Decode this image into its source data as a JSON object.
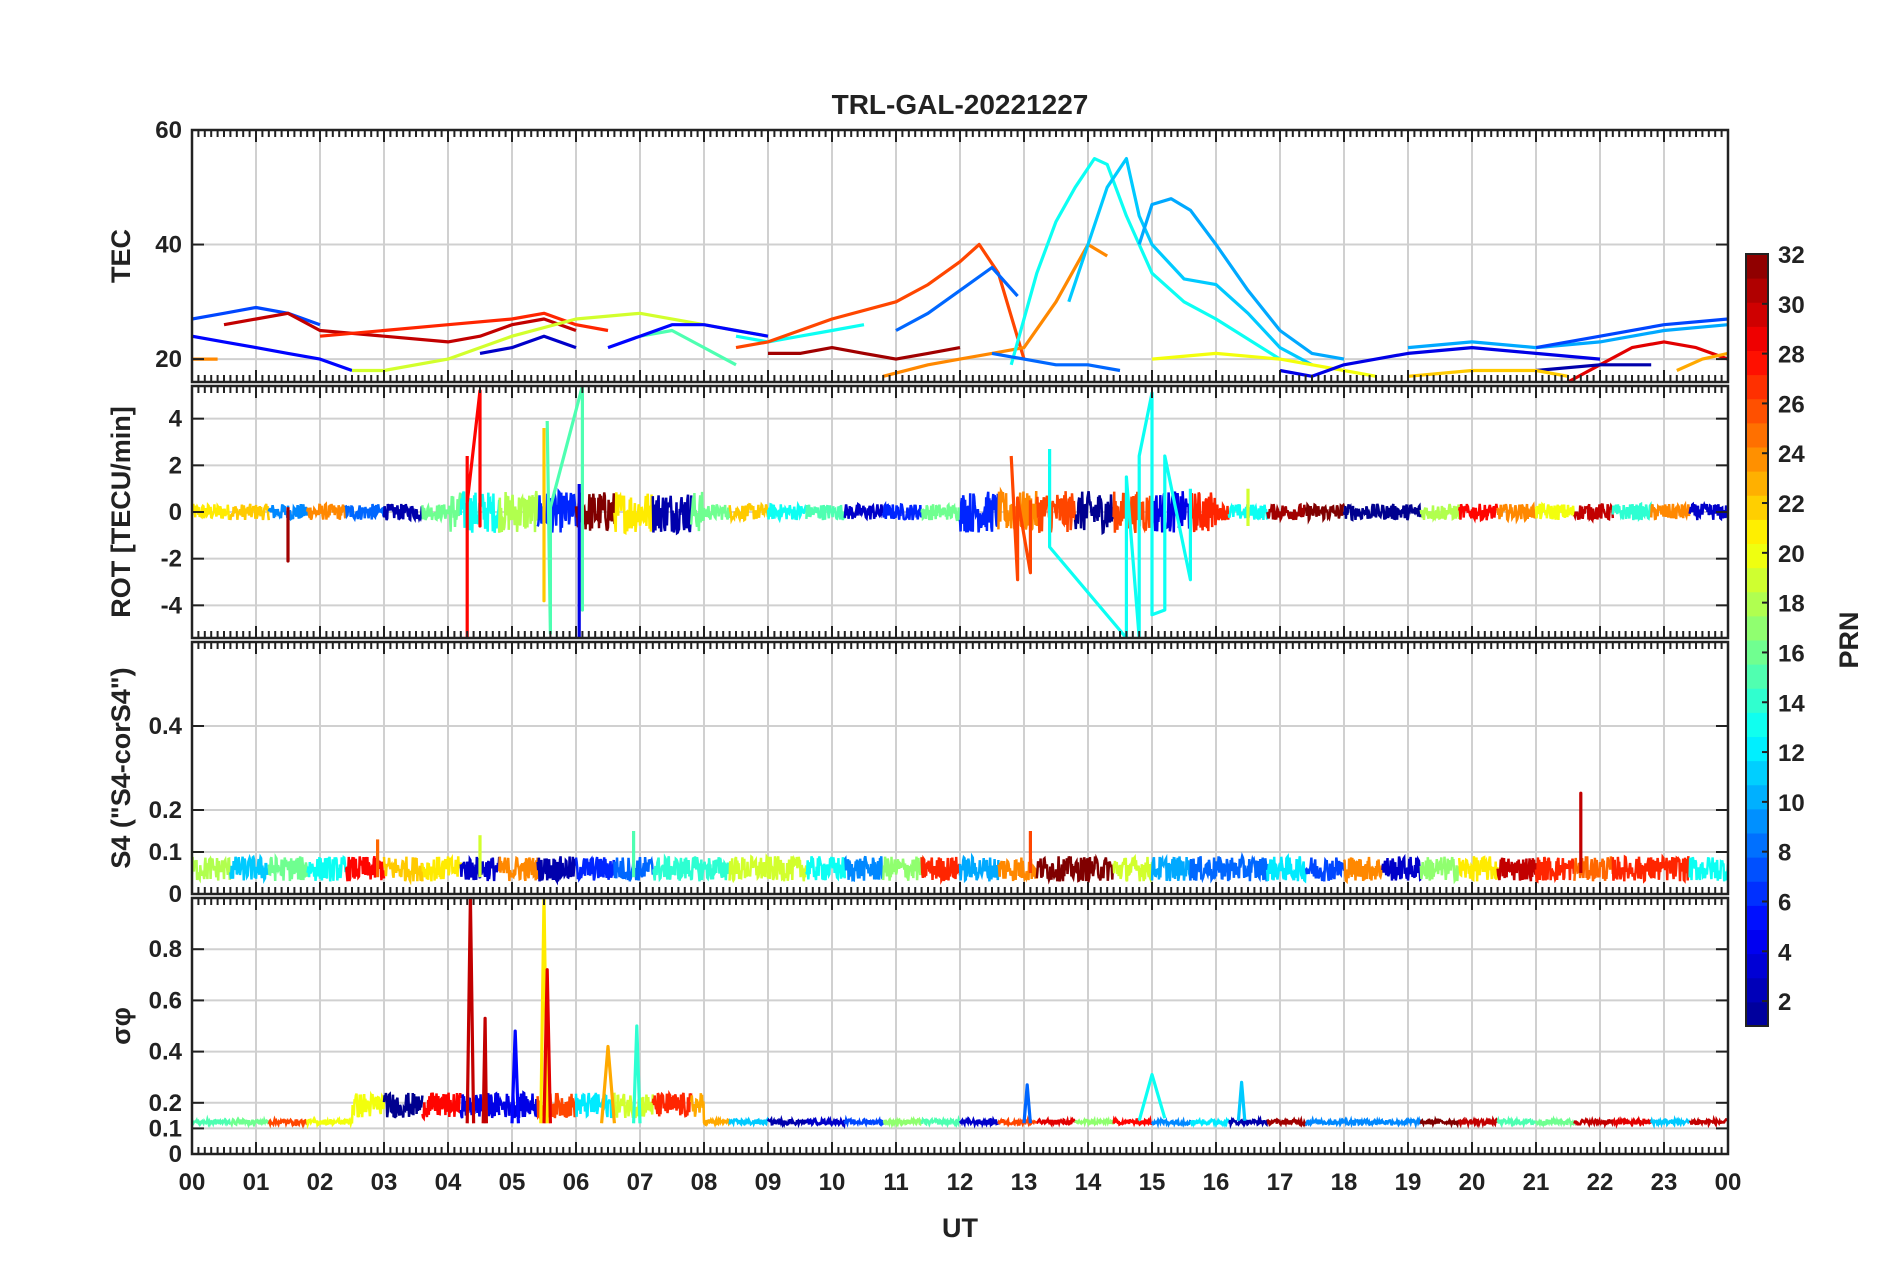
{
  "chart_data": {
    "type": "line",
    "title": "TRL-GAL-20221227",
    "xlabel": "UT",
    "x_ticks": [
      "00",
      "01",
      "02",
      "03",
      "04",
      "05",
      "06",
      "07",
      "08",
      "09",
      "10",
      "11",
      "12",
      "13",
      "14",
      "15",
      "16",
      "17",
      "18",
      "19",
      "20",
      "21",
      "22",
      "23",
      "00"
    ],
    "xlim": [
      0,
      24
    ],
    "grid": true,
    "colorbar": {
      "label": "PRN",
      "range": [
        1,
        32
      ],
      "ticks": [
        "2",
        "4",
        "6",
        "8",
        "10",
        "12",
        "14",
        "16",
        "18",
        "20",
        "22",
        "24",
        "26",
        "28",
        "30",
        "32"
      ],
      "colormap": [
        "#00008f",
        "#0000ff",
        "#0080ff",
        "#00ffff",
        "#80ff80",
        "#ffff00",
        "#ff8000",
        "#ff0000",
        "#800000"
      ]
    },
    "panels": [
      {
        "ylabel": "TEC",
        "ylim": [
          16,
          60
        ],
        "y_ticks": [
          "20",
          "40",
          "60"
        ],
        "y_tick_values": [
          20,
          40,
          60
        ],
        "series": [
          {
            "prn": 5,
            "x": [
              0,
              0.5,
              1,
              1.5,
              2,
              2.5
            ],
            "y": [
              24,
              23,
              22,
              21,
              20,
              18
            ]
          },
          {
            "prn": 7,
            "x": [
              0,
              0.5,
              1,
              1.5,
              2
            ],
            "y": [
              27,
              28,
              29,
              28,
              26
            ]
          },
          {
            "prn": 30,
            "x": [
              0.5,
              1,
              1.5,
              2,
              3,
              4,
              4.5,
              5,
              5.5,
              6
            ],
            "y": [
              26,
              27,
              28,
              25,
              24,
              23,
              24,
              26,
              27,
              25
            ]
          },
          {
            "prn": 27,
            "x": [
              2,
              3,
              4,
              5,
              5.5,
              6,
              6.5
            ],
            "y": [
              24,
              25,
              26,
              27,
              28,
              26,
              25
            ]
          },
          {
            "prn": 19,
            "x": [
              2.5,
              3,
              4,
              5,
              6,
              7,
              8,
              9
            ],
            "y": [
              18,
              18,
              20,
              24,
              27,
              28,
              26,
              24
            ]
          },
          {
            "prn": 3,
            "x": [
              4.5,
              5,
              5.5,
              6
            ],
            "y": [
              21,
              22,
              24,
              22
            ]
          },
          {
            "prn": 15,
            "x": [
              7,
              7.5,
              8,
              8.5
            ],
            "y": [
              24,
              25,
              22,
              19
            ]
          },
          {
            "prn": 5,
            "x": [
              6.5,
              7,
              7.5,
              8,
              8.5,
              9
            ],
            "y": [
              22,
              24,
              26,
              26,
              25,
              24
            ]
          },
          {
            "prn": 13,
            "x": [
              8.5,
              9,
              9.5,
              10,
              10.5
            ],
            "y": [
              24,
              23,
              24,
              25,
              26
            ]
          },
          {
            "prn": 31,
            "x": [
              9,
              9.5,
              10,
              10.5,
              11,
              11.5,
              12
            ],
            "y": [
              21,
              21,
              22,
              21,
              20,
              21,
              22
            ]
          },
          {
            "prn": 26,
            "x": [
              8.5,
              9,
              10,
              11,
              11.5,
              12,
              12.3,
              12.6,
              13
            ],
            "y": [
              22,
              23,
              27,
              30,
              33,
              37,
              40,
              35,
              20
            ]
          },
          {
            "prn": 8,
            "x": [
              11,
              11.5,
              12,
              12.5,
              12.9
            ],
            "y": [
              25,
              28,
              32,
              36,
              31
            ]
          },
          {
            "prn": 24,
            "x": [
              10.8,
              11.5,
              12,
              12.5,
              13,
              13.5,
              14,
              14.3
            ],
            "y": [
              17,
              19,
              20,
              21,
              22,
              30,
              40,
              38
            ]
          },
          {
            "prn": 13,
            "x": [
              12.8,
              13.2,
              13.5,
              13.8,
              14.1,
              14.3,
              14.6,
              15,
              15.5,
              16,
              17
            ],
            "y": [
              19,
              35,
              44,
              50,
              55,
              54,
              45,
              35,
              30,
              27,
              20
            ]
          },
          {
            "prn": 11,
            "x": [
              13.7,
              14,
              14.3,
              14.6,
              14.8,
              15,
              15.5,
              16,
              16.5,
              17,
              17.5
            ],
            "y": [
              30,
              40,
              50,
              55,
              45,
              40,
              34,
              33,
              28,
              22,
              19
            ]
          },
          {
            "prn": 10,
            "x": [
              14.8,
              15,
              15.3,
              15.6,
              16,
              16.5,
              17,
              17.5,
              18
            ],
            "y": [
              40,
              47,
              48,
              46,
              40,
              32,
              25,
              21,
              20
            ]
          },
          {
            "prn": 8,
            "x": [
              12.5,
              13,
              13.5,
              14,
              14.5
            ],
            "y": [
              21,
              20,
              19,
              19,
              18
            ]
          },
          {
            "prn": 20,
            "x": [
              15,
              16,
              17,
              18,
              18.5
            ],
            "y": [
              20,
              21,
              20,
              18,
              17
            ]
          },
          {
            "prn": 4,
            "x": [
              17,
              17.5,
              18,
              19,
              20,
              21,
              22
            ],
            "y": [
              18,
              17,
              19,
              21,
              22,
              21,
              20
            ]
          },
          {
            "prn": 10,
            "x": [
              19,
              20,
              21,
              22,
              23,
              24
            ],
            "y": [
              22,
              23,
              22,
              23,
              25,
              26
            ]
          },
          {
            "prn": 7,
            "x": [
              21,
              22,
              23,
              24
            ],
            "y": [
              22,
              24,
              26,
              27
            ]
          },
          {
            "prn": 29,
            "x": [
              21.5,
              22,
              22.5,
              23,
              23.5,
              24
            ],
            "y": [
              16,
              19,
              22,
              23,
              22,
              20
            ]
          },
          {
            "prn": 2,
            "x": [
              21,
              22,
              22.8
            ],
            "y": [
              18,
              19,
              19
            ]
          },
          {
            "prn": 22,
            "x": [
              19,
              20,
              21,
              21.5
            ],
            "y": [
              17,
              18,
              18,
              17
            ]
          },
          {
            "prn": 23,
            "x": [
              23.2,
              23.6,
              24
            ],
            "y": [
              18,
              20,
              21
            ]
          },
          {
            "prn": 24,
            "x": [
              0,
              0.2,
              0.4
            ],
            "y": [
              20,
              20,
              20
            ]
          }
        ]
      },
      {
        "ylabel": "ROT [TECU/min]",
        "ylim": [
          -5.4,
          5.4
        ],
        "y_ticks": [
          "-4",
          "-2",
          "0",
          "2",
          "4"
        ],
        "y_tick_values": [
          -4,
          -2,
          0,
          2,
          4
        ],
        "series": [
          {
            "prn": 31,
            "x": [
              1.5,
              1.5,
              1.5
            ],
            "y": [
              0,
              -2.1,
              0.2
            ]
          },
          {
            "prn": 28,
            "x": [
              4.3,
              4.3,
              4.3,
              4.5,
              4.5,
              4.5
            ],
            "y": [
              2.4,
              -5.4,
              0.4,
              5.2,
              -0.6,
              0.2
            ]
          },
          {
            "prn": 22,
            "x": [
              5.5,
              5.5,
              5.5
            ],
            "y": [
              3.6,
              -3.8,
              0.3
            ]
          },
          {
            "prn": 15,
            "x": [
              5.55,
              5.6,
              5.6,
              6.1,
              6.1,
              6.1
            ],
            "y": [
              3.9,
              -5.2,
              0.2,
              5.4,
              -4.2,
              0.1
            ]
          },
          {
            "prn": 4,
            "x": [
              6.05,
              6.05,
              6.05
            ],
            "y": [
              1.2,
              -5.4,
              0.2
            ]
          },
          {
            "prn": 26,
            "x": [
              12.8,
              12.9,
              12.9,
              13.1,
              13.1
            ],
            "y": [
              2.4,
              -2.9,
              0.6,
              -2.6,
              0.5
            ]
          },
          {
            "prn": 13,
            "x": [
              13.4,
              13.4,
              14.6,
              14.6,
              14.8,
              14.8,
              15,
              15,
              15.2,
              15.2,
              15.6,
              15.6
            ],
            "y": [
              2.7,
              -1.5,
              -5.4,
              1.5,
              -5.4,
              2.4,
              5.1,
              -4.4,
              -4.2,
              2.4,
              -2.9,
              1.0
            ]
          },
          {
            "prn": 19,
            "x": [
              16.5,
              16.5
            ],
            "y": [
              1.0,
              -0.6
            ]
          }
        ]
      },
      {
        "ylabel": "S4 (\"S4-corS4\")",
        "ylim": [
          0,
          0.6
        ],
        "y_ticks": [
          "0",
          "0.1",
          "0.2",
          "0.4"
        ],
        "y_tick_values": [
          0,
          0.1,
          0.2,
          0.4
        ],
        "series": [
          {
            "prn": 30,
            "x": [
              21.7,
              21.7,
              21.7
            ],
            "y": [
              0.05,
              0.24,
              0.05
            ]
          },
          {
            "prn": 19,
            "x": [
              4.5,
              4.5
            ],
            "y": [
              0.04,
              0.14
            ]
          },
          {
            "prn": 25,
            "x": [
              2.9,
              2.9
            ],
            "y": [
              0.04,
              0.13
            ]
          },
          {
            "prn": 26,
            "x": [
              13.1,
              13.1
            ],
            "y": [
              0.05,
              0.15
            ]
          },
          {
            "prn": 15,
            "x": [
              6.9,
              6.9
            ],
            "y": [
              0.04,
              0.15
            ]
          }
        ]
      },
      {
        "ylabel": "σφ",
        "ylim": [
          0,
          1
        ],
        "y_ticks": [
          "0",
          "0.1",
          "0.2",
          "0.4",
          "0.6",
          "0.8"
        ],
        "y_tick_values": [
          0,
          0.1,
          0.2,
          0.4,
          0.6,
          0.8
        ],
        "series": [
          {
            "prn": 30,
            "x": [
              4.3,
              4.35,
              4.4
            ],
            "y": [
              0.12,
              1.0,
              0.12
            ]
          },
          {
            "prn": 30,
            "x": [
              4.55,
              4.58,
              4.6
            ],
            "y": [
              0.12,
              0.53,
              0.12
            ]
          },
          {
            "prn": 21,
            "x": [
              5.45,
              5.5,
              5.55
            ],
            "y": [
              0.12,
              1.0,
              0.12
            ]
          },
          {
            "prn": 29,
            "x": [
              5.5,
              5.55,
              5.6
            ],
            "y": [
              0.12,
              0.72,
              0.12
            ]
          },
          {
            "prn": 5,
            "x": [
              5,
              5.05,
              5.1
            ],
            "y": [
              0.12,
              0.48,
              0.12
            ]
          },
          {
            "prn": 14,
            "x": [
              6.9,
              6.95,
              7.0
            ],
            "y": [
              0.12,
              0.5,
              0.12
            ]
          },
          {
            "prn": 23,
            "x": [
              6.4,
              6.5,
              6.6
            ],
            "y": [
              0.12,
              0.42,
              0.12
            ]
          },
          {
            "prn": 8,
            "x": [
              13,
              13.05,
              13.1
            ],
            "y": [
              0.12,
              0.27,
              0.12
            ]
          },
          {
            "prn": 13,
            "x": [
              14.8,
              15,
              15.2
            ],
            "y": [
              0.13,
              0.31,
              0.14
            ]
          },
          {
            "prn": 11,
            "x": [
              16.35,
              16.4,
              16.45
            ],
            "y": [
              0.13,
              0.28,
              0.13
            ]
          }
        ]
      }
    ]
  }
}
